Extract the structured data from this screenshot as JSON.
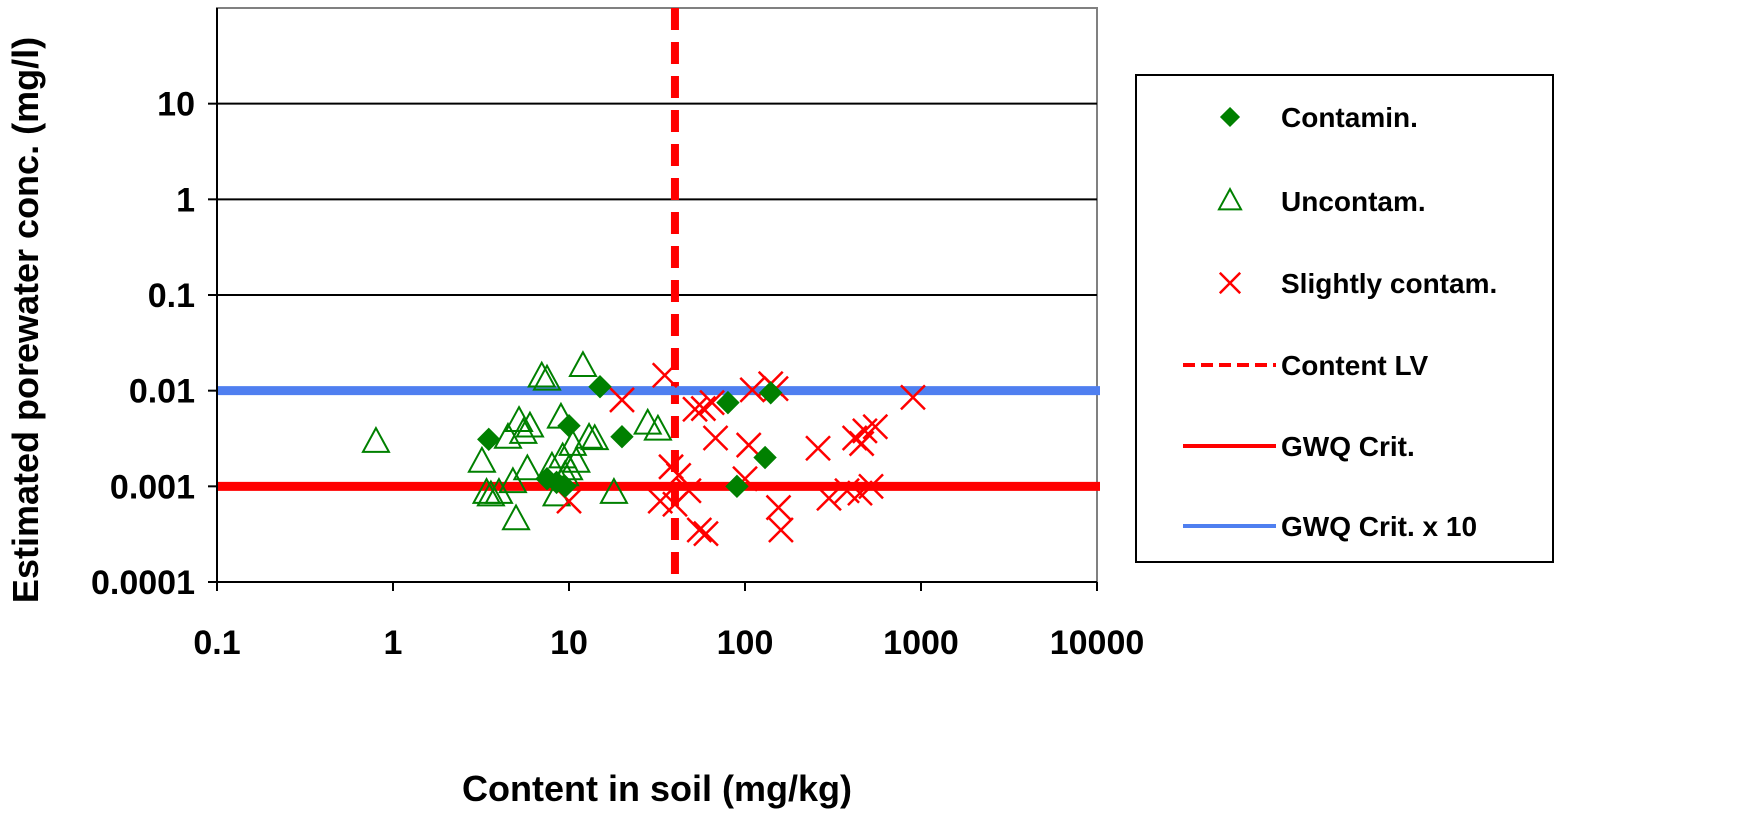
{
  "chart_data": {
    "type": "scatter",
    "xscale": "log",
    "yscale": "log",
    "xlabel": "Content in soil (mg/kg)",
    "ylabel": "Estimated porewater conc.  (mg/l)",
    "xlim": [
      0.1,
      10000
    ],
    "ylim": [
      0.0001,
      100
    ],
    "x_ticks": [
      0.1,
      1,
      10,
      100,
      1000,
      10000
    ],
    "x_tick_labels": [
      "0.1",
      "1",
      "10",
      "100",
      "1000",
      "10000"
    ],
    "y_ticks": [
      0.0001,
      0.001,
      0.01,
      0.1,
      1,
      10
    ],
    "y_tick_labels": [
      "0.0001",
      "0.001",
      "0.01",
      "0.1",
      "1",
      "10"
    ],
    "grid": "horizontal",
    "legend_position": "right",
    "series": [
      {
        "name": "Contamin.",
        "marker": "diamond-filled",
        "color": "#008000",
        "points": [
          [
            3.5,
            0.0031
          ],
          [
            7.5,
            0.0012
          ],
          [
            8.5,
            0.0011
          ],
          [
            9.5,
            0.001
          ],
          [
            10,
            0.0043
          ],
          [
            15,
            0.011
          ],
          [
            20,
            0.0033
          ],
          [
            80,
            0.0075
          ],
          [
            90,
            0.001
          ],
          [
            130,
            0.002
          ],
          [
            140,
            0.0095
          ]
        ]
      },
      {
        "name": "Uncontam.",
        "marker": "triangle-open",
        "color": "#008000",
        "points": [
          [
            0.8,
            0.0029
          ],
          [
            3.2,
            0.0018
          ],
          [
            3.4,
            0.00085
          ],
          [
            3.6,
            0.0008
          ],
          [
            4,
            0.00085
          ],
          [
            4.5,
            0.0032
          ],
          [
            4.8,
            0.0011
          ],
          [
            5,
            0.00045
          ],
          [
            5.2,
            0.0048
          ],
          [
            5.5,
            0.0036
          ],
          [
            5.8,
            0.0015
          ],
          [
            6,
            0.0042
          ],
          [
            7,
            0.014
          ],
          [
            7.5,
            0.013
          ],
          [
            8,
            0.0016
          ],
          [
            8.5,
            0.0008
          ],
          [
            9,
            0.0052
          ],
          [
            9.2,
            0.002
          ],
          [
            9.5,
            0.0013
          ],
          [
            10,
            0.0015
          ],
          [
            10.5,
            0.0027
          ],
          [
            11,
            0.0018
          ],
          [
            12,
            0.018
          ],
          [
            13,
            0.0032
          ],
          [
            14,
            0.0031
          ],
          [
            18,
            0.00085
          ],
          [
            28,
            0.0045
          ],
          [
            32,
            0.0039
          ]
        ]
      },
      {
        "name": "Slightly contam.",
        "marker": "x",
        "color": "#ff0000",
        "points": [
          [
            10,
            0.0007
          ],
          [
            20,
            0.008
          ],
          [
            33,
            0.0007
          ],
          [
            35,
            0.0145
          ],
          [
            38,
            0.0016
          ],
          [
            40,
            0.00065
          ],
          [
            42,
            0.0013
          ],
          [
            48,
            0.0009
          ],
          [
            52,
            0.0064
          ],
          [
            55,
            0.00035
          ],
          [
            58,
            0.0065
          ],
          [
            60,
            0.00032
          ],
          [
            65,
            0.0075
          ],
          [
            68,
            0.0032
          ],
          [
            100,
            0.0012
          ],
          [
            105,
            0.0027
          ],
          [
            110,
            0.0102
          ],
          [
            140,
            0.0118
          ],
          [
            150,
            0.0105
          ],
          [
            155,
            0.0006
          ],
          [
            160,
            0.00035
          ],
          [
            260,
            0.0025
          ],
          [
            300,
            0.00075
          ],
          [
            380,
            0.0009
          ],
          [
            420,
            0.0032
          ],
          [
            450,
            0.00085
          ],
          [
            460,
            0.0028
          ],
          [
            480,
            0.0038
          ],
          [
            520,
            0.001
          ],
          [
            550,
            0.0042
          ],
          [
            900,
            0.0085
          ]
        ]
      }
    ],
    "reference_lines": [
      {
        "name": "Content  LV",
        "orientation": "vertical",
        "value": 40,
        "style": "dashed",
        "color": "#ff0000"
      },
      {
        "name": "GWQ Crit.",
        "orientation": "horizontal",
        "value": 0.001,
        "style": "solid",
        "color": "#ff0000"
      },
      {
        "name": "GWQ Crit.  x 10",
        "orientation": "horizontal",
        "value": 0.01,
        "style": "solid",
        "color": "#4f7ff0"
      }
    ]
  }
}
